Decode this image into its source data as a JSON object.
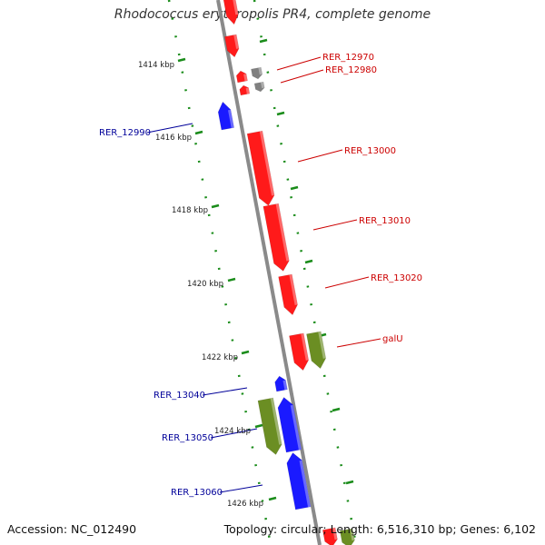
{
  "title": "Rhodococcus erythropolis PR4, complete genome",
  "footer": {
    "accession": "Accession: NC_012490",
    "topology": "Topology: circular; Length: 6,516,310 bp; Genes: 6,102"
  },
  "colors": {
    "backbone": "#8a8a8a",
    "ruler": "#1a8c1a",
    "gene_red": "#ff1a1a",
    "gene_blue": "#1a1aff",
    "gene_green": "#6b8e23",
    "gene_gray": "#808080",
    "label_red": "#cc0000",
    "label_blue": "#000099"
  },
  "ruler_labels": [
    "1414 kbp",
    "1416 kbp",
    "1418 kbp",
    "1420 kbp",
    "1422 kbp",
    "1424 kbp",
    "1426 kbp"
  ],
  "gene_labels": [
    "RER_12970",
    "RER_12980",
    "RER_12990",
    "RER_13000",
    "RER_13010",
    "RER_13020",
    "galU",
    "RER_13040",
    "RER_13050",
    "RER_13060"
  ]
}
